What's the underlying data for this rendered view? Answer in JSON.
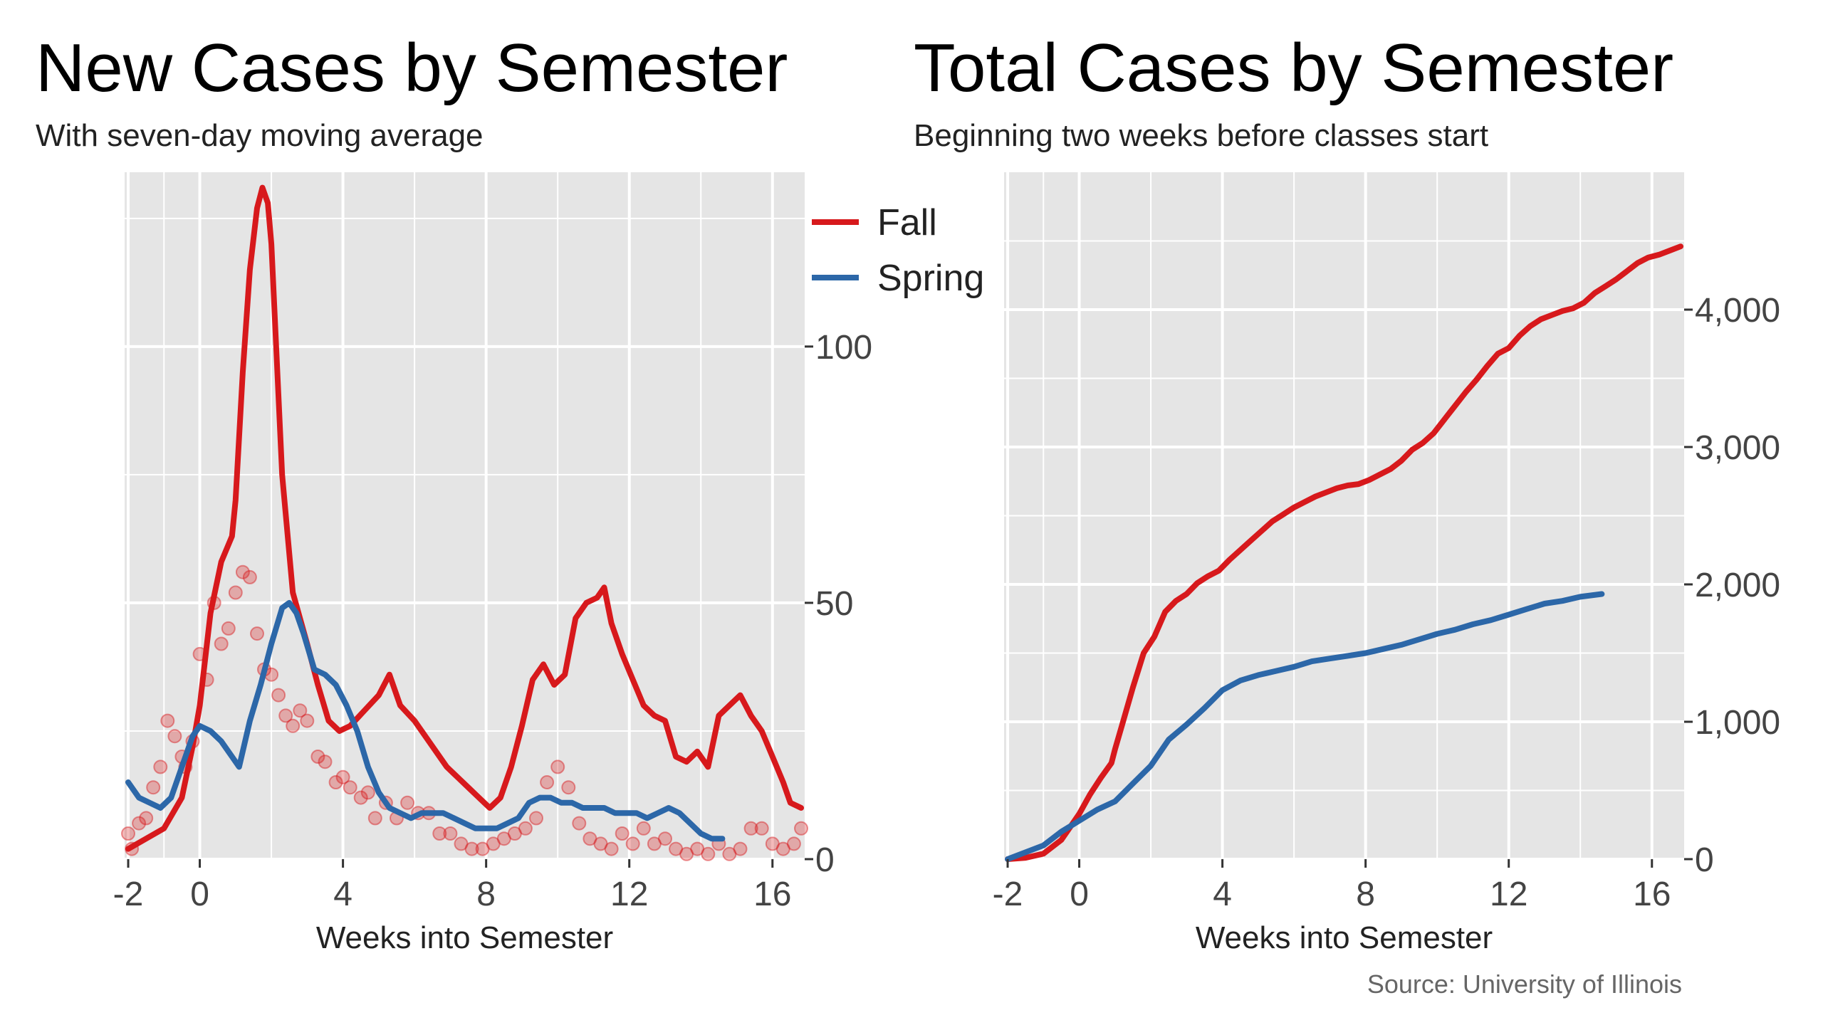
{
  "colors": {
    "fall": "#d7191c",
    "spring": "#2c67a8",
    "panel": "#e5e5e5",
    "grid": "#ffffff"
  },
  "source": "Source: University of Illinois",
  "chart_data": [
    {
      "type": "line",
      "title": "New Cases by Semester",
      "subtitle": "With seven-day moving average",
      "xlabel": "Weeks into Semester",
      "ylabel": "",
      "xlim": [
        -2.1,
        16.9
      ],
      "ylim": [
        0,
        134
      ],
      "x_ticks": [
        {
          "value": -2,
          "label": "-2"
        },
        {
          "value": 0,
          "label": "0"
        },
        {
          "value": 4,
          "label": "4"
        },
        {
          "value": 8,
          "label": "8"
        },
        {
          "value": 12,
          "label": "12"
        },
        {
          "value": 16,
          "label": "16"
        }
      ],
      "y_ticks": [
        {
          "value": 0,
          "label": "0"
        },
        {
          "value": 50,
          "label": "50"
        },
        {
          "value": 100,
          "label": "100"
        }
      ],
      "y_axis_side": "right",
      "legend": [
        {
          "name": "Fall",
          "color": "#d7191c"
        },
        {
          "name": "Spring",
          "color": "#2c67a8"
        }
      ],
      "series": [
        {
          "name": "Fall",
          "style": "line",
          "x": [
            -2,
            -1.5,
            -1,
            -0.5,
            -0.2,
            0,
            0.3,
            0.6,
            0.9,
            1.0,
            1.2,
            1.4,
            1.6,
            1.75,
            1.9,
            2.0,
            2.3,
            2.6,
            3.0,
            3.3,
            3.6,
            3.9,
            4.2,
            4.6,
            5.0,
            5.3,
            5.6,
            6.0,
            6.3,
            6.6,
            6.9,
            7.2,
            7.5,
            7.8,
            8.1,
            8.4,
            8.7,
            9.0,
            9.3,
            9.6,
            9.9,
            10.2,
            10.5,
            10.8,
            11.1,
            11.3,
            11.5,
            11.8,
            12.1,
            12.4,
            12.7,
            13.0,
            13.3,
            13.6,
            13.9,
            14.2,
            14.5,
            14.8,
            15.1,
            15.4,
            15.7,
            16.0,
            16.3,
            16.5,
            16.8
          ],
          "y": [
            2,
            4,
            6,
            12,
            22,
            30,
            48,
            58,
            63,
            70,
            95,
            115,
            127,
            131,
            128,
            120,
            75,
            52,
            42,
            34,
            27,
            25,
            26,
            29,
            32,
            36,
            30,
            27,
            24,
            21,
            18,
            16,
            14,
            12,
            10,
            12,
            18,
            26,
            35,
            38,
            34,
            36,
            47,
            50,
            51,
            53,
            46,
            40,
            35,
            30,
            28,
            27,
            20,
            19,
            21,
            18,
            28,
            30,
            32,
            28,
            25,
            20,
            15,
            11,
            10
          ]
        },
        {
          "name": "Spring",
          "style": "line",
          "x": [
            -2,
            -1.7,
            -1.4,
            -1.1,
            -0.8,
            -0.5,
            -0.2,
            0,
            0.3,
            0.6,
            0.9,
            1.1,
            1.4,
            1.7,
            2.0,
            2.3,
            2.5,
            2.7,
            2.9,
            3.2,
            3.5,
            3.8,
            4.1,
            4.4,
            4.7,
            5.0,
            5.3,
            5.6,
            5.9,
            6.2,
            6.5,
            6.8,
            7.1,
            7.4,
            7.7,
            8.0,
            8.3,
            8.6,
            8.9,
            9.2,
            9.5,
            9.8,
            10.1,
            10.4,
            10.7,
            11.0,
            11.3,
            11.6,
            11.9,
            12.2,
            12.5,
            12.8,
            13.1,
            13.4,
            13.7,
            14.0,
            14.3,
            14.6
          ],
          "y": [
            15,
            12,
            11,
            10,
            12,
            18,
            24,
            26,
            25,
            23,
            20,
            18,
            27,
            34,
            42,
            49,
            50,
            48,
            44,
            37,
            36,
            34,
            30,
            25,
            18,
            13,
            10,
            9,
            8,
            9,
            9,
            9,
            8,
            7,
            6,
            6,
            6,
            7,
            8,
            11,
            12,
            12,
            11,
            11,
            10,
            10,
            10,
            9,
            9,
            9,
            8,
            9,
            10,
            9,
            7,
            5,
            4,
            4
          ]
        },
        {
          "name": "Fall",
          "style": "scatter",
          "x": [
            -2,
            -1.9,
            -1.7,
            -1.5,
            -1.3,
            -1.1,
            -0.9,
            -0.7,
            -0.5,
            -0.4,
            -0.2,
            0,
            0.2,
            0.4,
            0.6,
            0.8,
            1.0,
            1.2,
            1.4,
            1.6,
            1.8,
            2.0,
            2.2,
            2.4,
            2.6,
            2.8,
            3.0,
            3.3,
            3.5,
            3.8,
            4.0,
            4.2,
            4.5,
            4.7,
            4.9,
            5.2,
            5.5,
            5.8,
            6.1,
            6.4,
            6.7,
            7.0,
            7.3,
            7.6,
            7.9,
            8.2,
            8.5,
            8.8,
            9.1,
            9.4,
            9.7,
            10.0,
            10.3,
            10.6,
            10.9,
            11.2,
            11.5,
            11.8,
            12.1,
            12.4,
            12.7,
            13.0,
            13.3,
            13.6,
            13.9,
            14.2,
            14.5,
            14.8,
            15.1,
            15.4,
            15.7,
            16.0,
            16.3,
            16.6,
            16.8
          ],
          "y": [
            5,
            2,
            7,
            8,
            14,
            18,
            27,
            24,
            20,
            18,
            23,
            40,
            35,
            50,
            42,
            45,
            52,
            56,
            55,
            44,
            37,
            36,
            32,
            28,
            26,
            29,
            27,
            20,
            19,
            15,
            16,
            14,
            12,
            13,
            8,
            11,
            8,
            11,
            9,
            9,
            5,
            5,
            3,
            2,
            2,
            3,
            4,
            5,
            6,
            8,
            15,
            18,
            14,
            7,
            4,
            3,
            2,
            5,
            3,
            6,
            3,
            4,
            2,
            1,
            2,
            1,
            3,
            1,
            2,
            6,
            6,
            3,
            2,
            3,
            6
          ]
        }
      ]
    },
    {
      "type": "line",
      "title": "Total Cases by Semester",
      "subtitle": "Beginning two weeks before classes start",
      "xlabel": "Weeks into Semester",
      "ylabel": "",
      "xlim": [
        -2.1,
        16.9
      ],
      "ylim": [
        0,
        5000
      ],
      "x_ticks": [
        {
          "value": -2,
          "label": "-2"
        },
        {
          "value": 0,
          "label": "0"
        },
        {
          "value": 4,
          "label": "4"
        },
        {
          "value": 8,
          "label": "8"
        },
        {
          "value": 12,
          "label": "12"
        },
        {
          "value": 16,
          "label": "16"
        }
      ],
      "y_ticks": [
        {
          "value": 0,
          "label": "0"
        },
        {
          "value": 1000,
          "label": "1,000"
        },
        {
          "value": 2000,
          "label": "2,000"
        },
        {
          "value": 3000,
          "label": "3,000"
        },
        {
          "value": 4000,
          "label": "4,000"
        }
      ],
      "y_axis_side": "right",
      "series": [
        {
          "name": "Fall",
          "style": "line",
          "x": [
            -2,
            -1.5,
            -1,
            -0.5,
            0,
            0.3,
            0.6,
            0.9,
            1.0,
            1.2,
            1.5,
            1.8,
            2.1,
            2.4,
            2.7,
            3.0,
            3.3,
            3.6,
            3.9,
            4.2,
            4.5,
            4.8,
            5.1,
            5.4,
            5.7,
            6.0,
            6.3,
            6.6,
            6.9,
            7.2,
            7.5,
            7.8,
            8.1,
            8.4,
            8.7,
            9.0,
            9.3,
            9.6,
            9.9,
            10.2,
            10.5,
            10.8,
            11.1,
            11.4,
            11.7,
            12.0,
            12.3,
            12.6,
            12.9,
            13.2,
            13.5,
            13.8,
            14.1,
            14.4,
            14.7,
            15.0,
            15.3,
            15.6,
            15.9,
            16.2,
            16.5,
            16.8
          ],
          "y": [
            0,
            10,
            40,
            140,
            330,
            470,
            590,
            700,
            800,
            980,
            1250,
            1500,
            1620,
            1800,
            1880,
            1930,
            2010,
            2060,
            2100,
            2180,
            2250,
            2320,
            2390,
            2460,
            2510,
            2560,
            2600,
            2640,
            2670,
            2700,
            2720,
            2730,
            2760,
            2800,
            2840,
            2900,
            2980,
            3030,
            3100,
            3200,
            3300,
            3400,
            3490,
            3590,
            3680,
            3720,
            3810,
            3880,
            3930,
            3960,
            3990,
            4010,
            4050,
            4120,
            4170,
            4220,
            4280,
            4340,
            4380,
            4400,
            4430,
            4460
          ]
        },
        {
          "name": "Spring",
          "style": "line",
          "x": [
            -2,
            -1.5,
            -1,
            -0.5,
            0,
            0.5,
            1.0,
            1.5,
            2.0,
            2.5,
            3.0,
            3.5,
            4.0,
            4.5,
            5.0,
            5.5,
            6.0,
            6.5,
            7.0,
            7.5,
            8.0,
            8.5,
            9.0,
            9.5,
            10.0,
            10.5,
            11.0,
            11.5,
            12.0,
            12.5,
            13.0,
            13.5,
            14.0,
            14.6
          ],
          "y": [
            0,
            50,
            100,
            200,
            280,
            360,
            420,
            550,
            680,
            870,
            980,
            1100,
            1230,
            1300,
            1340,
            1370,
            1400,
            1440,
            1460,
            1480,
            1500,
            1530,
            1560,
            1600,
            1640,
            1670,
            1710,
            1740,
            1780,
            1820,
            1860,
            1880,
            1910,
            1930
          ]
        }
      ]
    }
  ]
}
